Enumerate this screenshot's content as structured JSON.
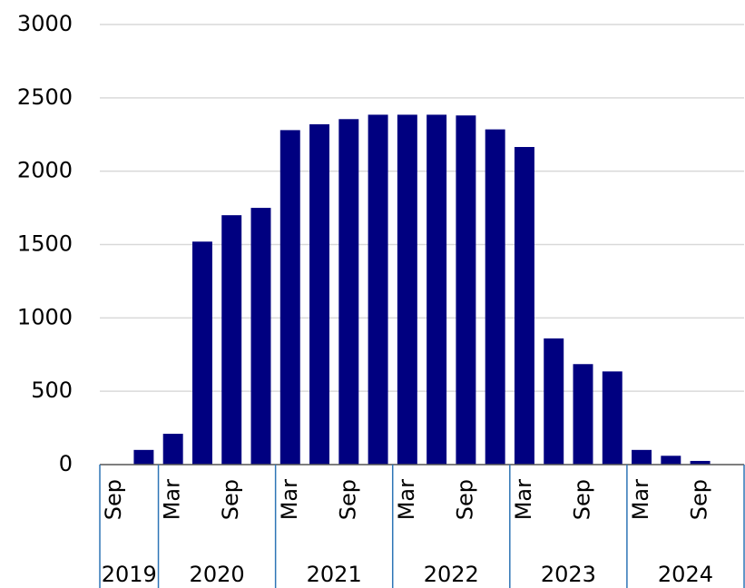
{
  "chart_data": {
    "type": "bar",
    "color": "#000080",
    "groups": [
      {
        "label": "2019",
        "categories": [
          "Sep",
          null
        ]
      },
      {
        "label": "2020",
        "categories": [
          "Mar",
          null,
          "Sep",
          null
        ]
      },
      {
        "label": "2021",
        "categories": [
          "Mar",
          null,
          "Sep",
          null
        ]
      },
      {
        "label": "2022",
        "categories": [
          "Mar",
          null,
          "Sep",
          null
        ]
      },
      {
        "label": "2023",
        "categories": [
          "Mar",
          null,
          "Sep",
          null
        ]
      },
      {
        "label": "2024",
        "categories": [
          "Mar",
          null,
          "Sep",
          null
        ]
      }
    ],
    "values": [
      0,
      100,
      210,
      1520,
      1700,
      1750,
      2280,
      2320,
      2355,
      2385,
      2385,
      2385,
      2380,
      2285,
      2165,
      860,
      685,
      635,
      100,
      60,
      25,
      0
    ],
    "ylim": [
      0,
      3000
    ],
    "yticks": [
      0,
      500,
      1000,
      1500,
      2000,
      2500,
      3000
    ],
    "grid": true
  }
}
